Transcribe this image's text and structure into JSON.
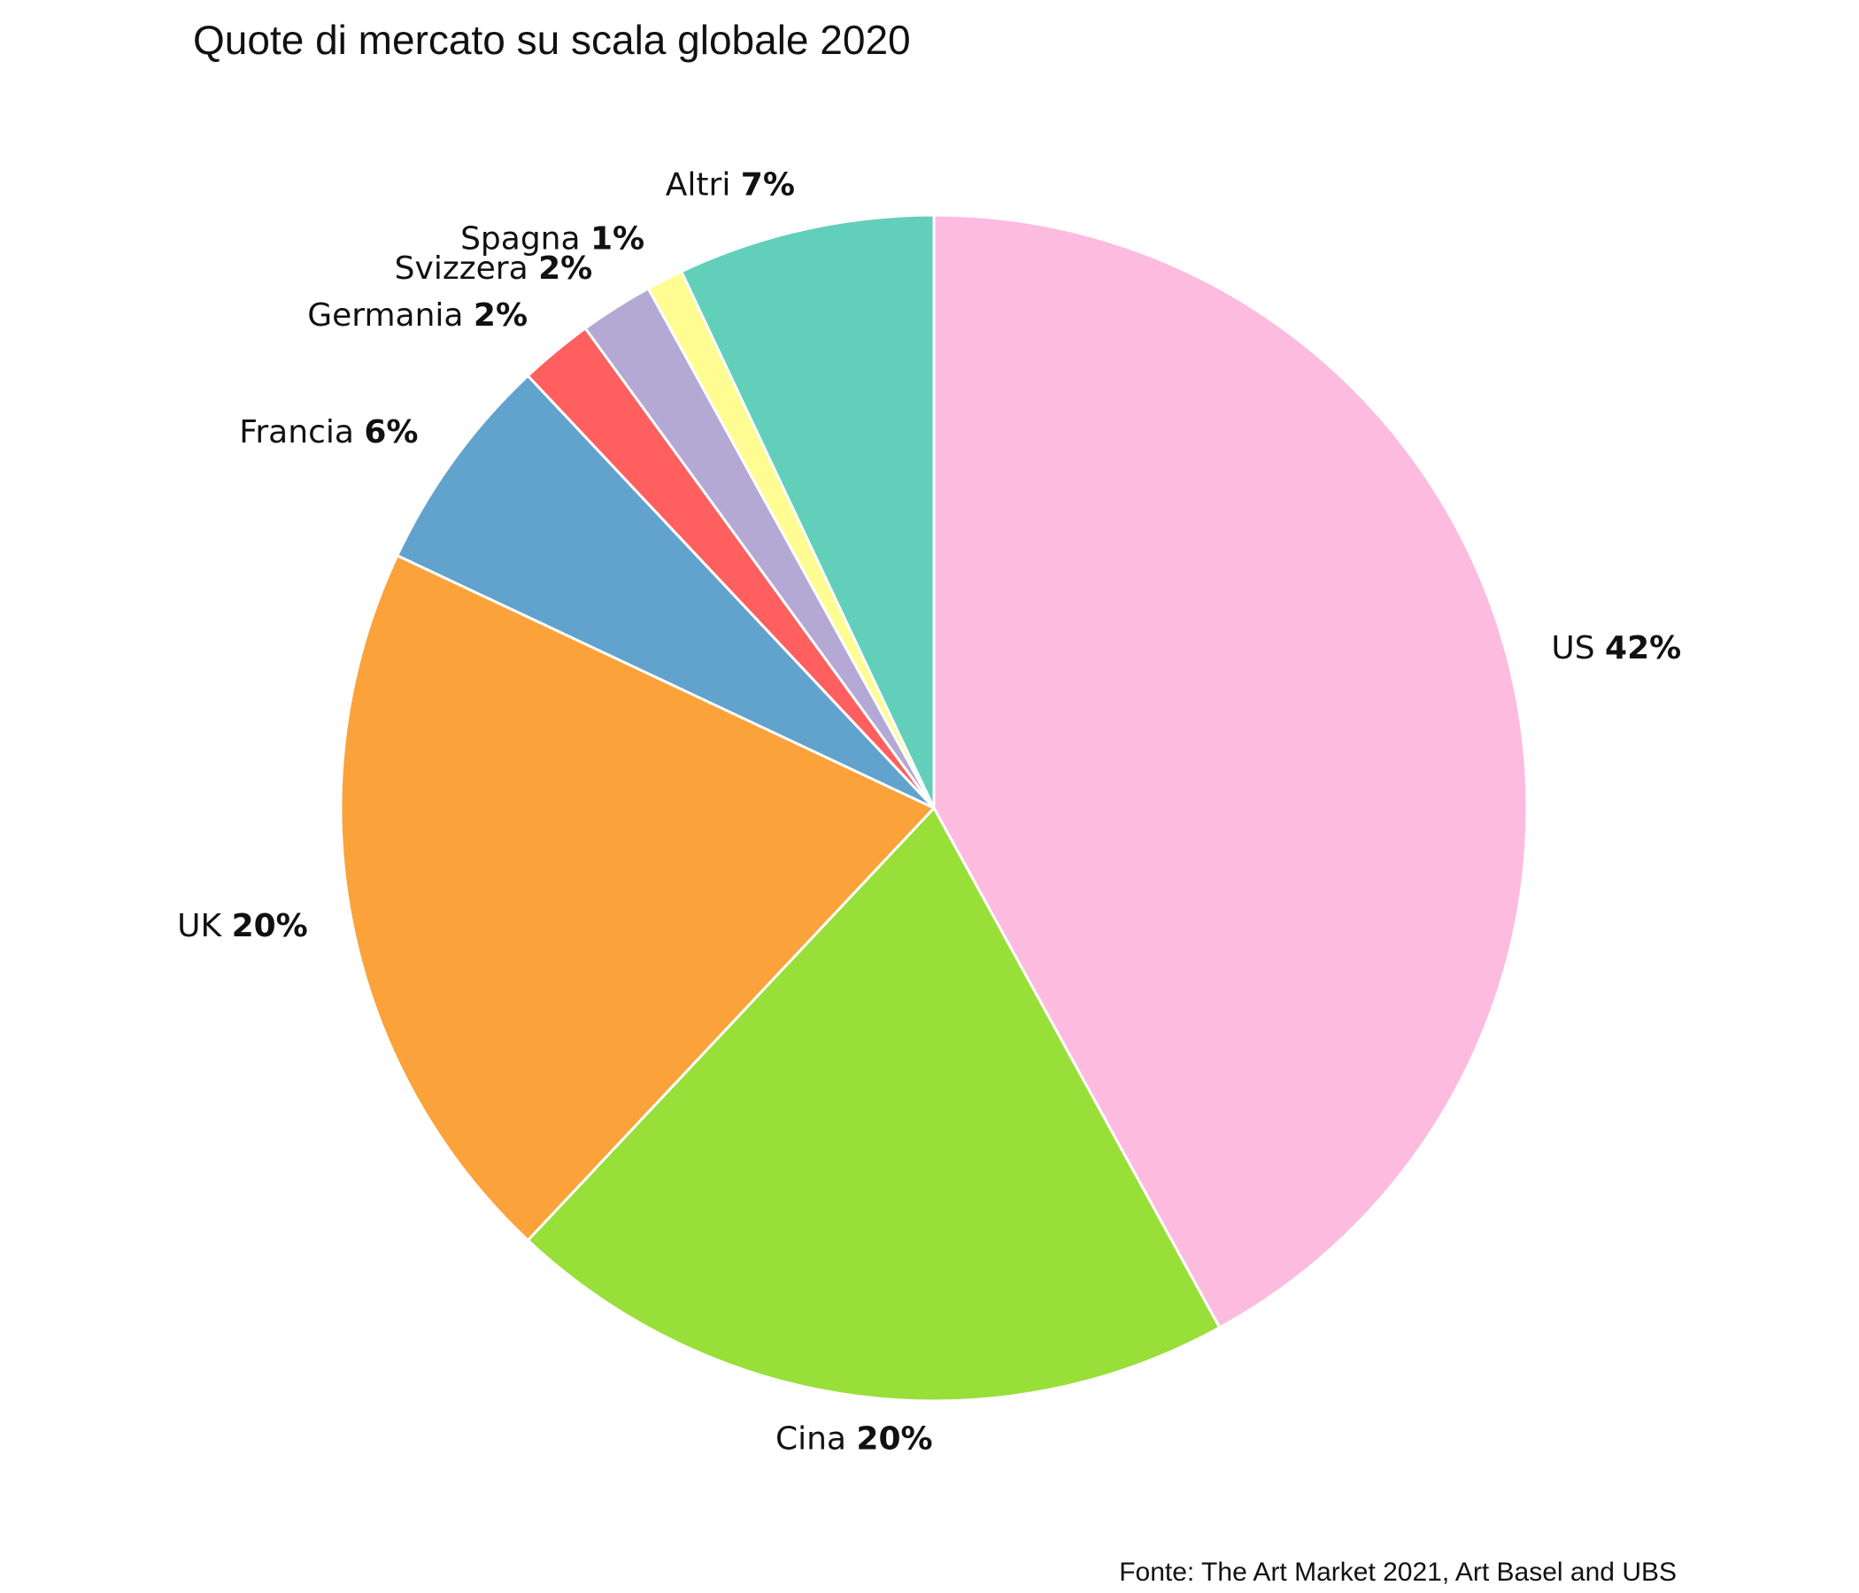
{
  "chart_data": {
    "type": "pie",
    "title": "Quote di mercato su scala globale 2020",
    "source": "Fonte: The Art Market 2021, Art Basel and UBS",
    "slices": [
      {
        "label": "US",
        "value": 42,
        "pct_text": "42%",
        "color": "#FDBBE0"
      },
      {
        "label": "Cina",
        "value": 20,
        "pct_text": "20%",
        "color": "#98DF3A"
      },
      {
        "label": "UK",
        "value": 20,
        "pct_text": "20%",
        "color": "#FCA23A"
      },
      {
        "label": "Francia",
        "value": 6,
        "pct_text": "6%",
        "color": "#61A3CD"
      },
      {
        "label": "Germania",
        "value": 2,
        "pct_text": "2%",
        "color": "#FF5F5E"
      },
      {
        "label": "Svizzera",
        "value": 2,
        "pct_text": "2%",
        "color": "#B3A9D4"
      },
      {
        "label": "Spagna",
        "value": 1,
        "pct_text": "1%",
        "color": "#FFFC91"
      },
      {
        "label": "Altri",
        "value": 7,
        "pct_text": "7%",
        "color": "#62CFBB"
      }
    ],
    "start_direction": "top",
    "order": "clockwise"
  }
}
